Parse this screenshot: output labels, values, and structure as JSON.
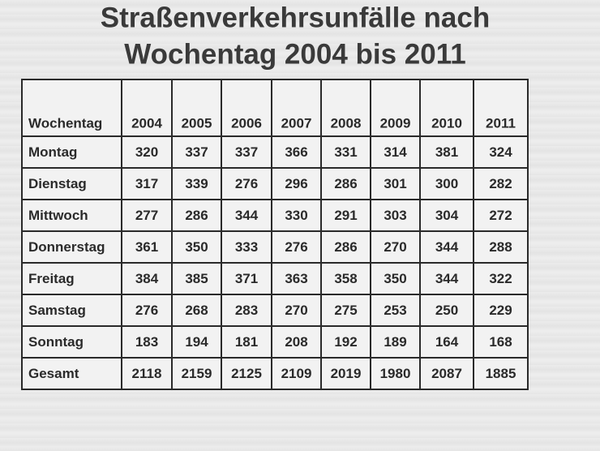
{
  "title": [
    "Straßenverkehrsunfälle nach",
    "Wochentag 2004 bis 2011"
  ],
  "table": {
    "header": [
      "Wochentag",
      "2004",
      "2005",
      "2006",
      "2007",
      "2008",
      "2009",
      "2010",
      "2011"
    ],
    "rows": [
      [
        "Montag",
        320,
        337,
        337,
        366,
        331,
        314,
        381,
        324
      ],
      [
        "Dienstag",
        317,
        339,
        276,
        296,
        286,
        301,
        300,
        282
      ],
      [
        "Mittwoch",
        277,
        286,
        344,
        330,
        291,
        303,
        304,
        272
      ],
      [
        "Donnerstag",
        361,
        350,
        333,
        276,
        286,
        270,
        344,
        288
      ],
      [
        "Freitag",
        384,
        385,
        371,
        363,
        358,
        350,
        344,
        322
      ],
      [
        "Samstag",
        276,
        268,
        283,
        270,
        275,
        253,
        250,
        229
      ],
      [
        "Sonntag",
        183,
        194,
        181,
        208,
        192,
        189,
        164,
        168
      ],
      [
        "Gesamt",
        2118,
        2159,
        2125,
        2109,
        2019,
        1980,
        2087,
        1885
      ]
    ]
  }
}
